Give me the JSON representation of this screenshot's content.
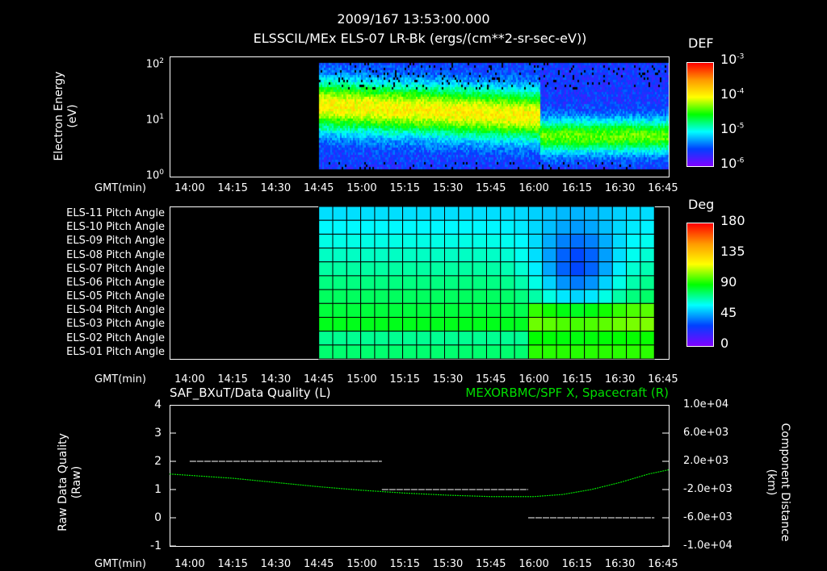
{
  "header": {
    "timestamp": "2009/167 13:53:00.000",
    "title": "ELSSCIL/MEx ELS-07 LR-Bk  (ergs/(cm**2-sr-sec-eV))"
  },
  "time_axis": {
    "label": "GMT(min)",
    "ticks": [
      "14:00",
      "14:15",
      "14:30",
      "14:45",
      "15:00",
      "15:15",
      "15:30",
      "15:45",
      "16:00",
      "16:15",
      "16:30",
      "16:45"
    ],
    "range": [
      "13:53",
      "16:47"
    ]
  },
  "chart_data": [
    {
      "type": "heatmap",
      "name": "electron spectrogram",
      "ylabel_line1": "Electron Energy",
      "ylabel_line2": "(eV)",
      "yscale": "log",
      "ylim": [
        1,
        145
      ],
      "yticks": [
        {
          "base": "10",
          "exp": "0",
          "value": 1
        },
        {
          "base": "10",
          "exp": "1",
          "value": 10
        },
        {
          "base": "10",
          "exp": "2",
          "value": 100
        }
      ],
      "data_start": "14:45",
      "colorbar": {
        "title": "DEF",
        "scale": "log",
        "range": [
          1e-06,
          0.001
        ],
        "ticks": [
          {
            "base": "10",
            "exp": "-3"
          },
          {
            "base": "10",
            "exp": "-4"
          },
          {
            "base": "10",
            "exp": "-5"
          },
          {
            "base": "10",
            "exp": "-6"
          }
        ]
      },
      "features": "broad band at ~10-40 eV until ~16:02, then lower-energy band ~3-10 eV"
    },
    {
      "type": "heatmap",
      "name": "pitch angle",
      "rows": [
        "ELS-11 Pitch Angle",
        "ELS-10 Pitch Angle",
        "ELS-09 Pitch Angle",
        "ELS-08 Pitch Angle",
        "ELS-07 Pitch Angle",
        "ELS-06 Pitch Angle",
        "ELS-05 Pitch Angle",
        "ELS-04 Pitch Angle",
        "ELS-03 Pitch Angle",
        "ELS-02 Pitch Angle",
        "ELS-01 Pitch Angle"
      ],
      "data_range": [
        "14:45",
        "16:42"
      ],
      "colorbar": {
        "title": "Deg",
        "range": [
          0,
          180
        ],
        "ticks": [
          "180",
          "135",
          "90",
          "45",
          "0"
        ]
      }
    },
    {
      "type": "line",
      "title_left": "SAF_BXuT/Data Quality (L)",
      "title_right": "MEXORBMC/SPF X, Spacecraft (R)",
      "right_color": "#00dd00",
      "ylabel_left_line1": "Raw Data Quality",
      "ylabel_left_line2": "(Raw)",
      "ylim_left": [
        -1,
        4
      ],
      "yticks_left": [
        "4",
        "3",
        "2",
        "1",
        "0",
        "-1"
      ],
      "ylabel_right_line1": "Component Distance",
      "ylabel_right_line2": "(km)",
      "ylim_right": [
        -10000,
        10000
      ],
      "yticks_right": [
        "1.0e+04",
        "6.0e+03",
        "2.0e+03",
        "-2.0e+03",
        "-6.0e+03",
        "-1.0e+04"
      ],
      "data_quality": [
        {
          "from": "14:00",
          "to": "15:07",
          "value": 2
        },
        {
          "from": "15:07",
          "to": "15:58",
          "value": 1
        },
        {
          "from": "15:58",
          "to": "16:42",
          "value": 0
        }
      ],
      "spacecraft_x": {
        "t": [
          "13:53",
          "14:15",
          "14:30",
          "14:45",
          "15:00",
          "15:15",
          "15:30",
          "15:45",
          "16:00",
          "16:10",
          "16:20",
          "16:30",
          "16:40",
          "16:47"
        ],
        "km": [
          200,
          -400,
          -1000,
          -1600,
          -2100,
          -2500,
          -2800,
          -3000,
          -3000,
          -2700,
          -2000,
          -1000,
          200,
          800
        ]
      }
    }
  ]
}
